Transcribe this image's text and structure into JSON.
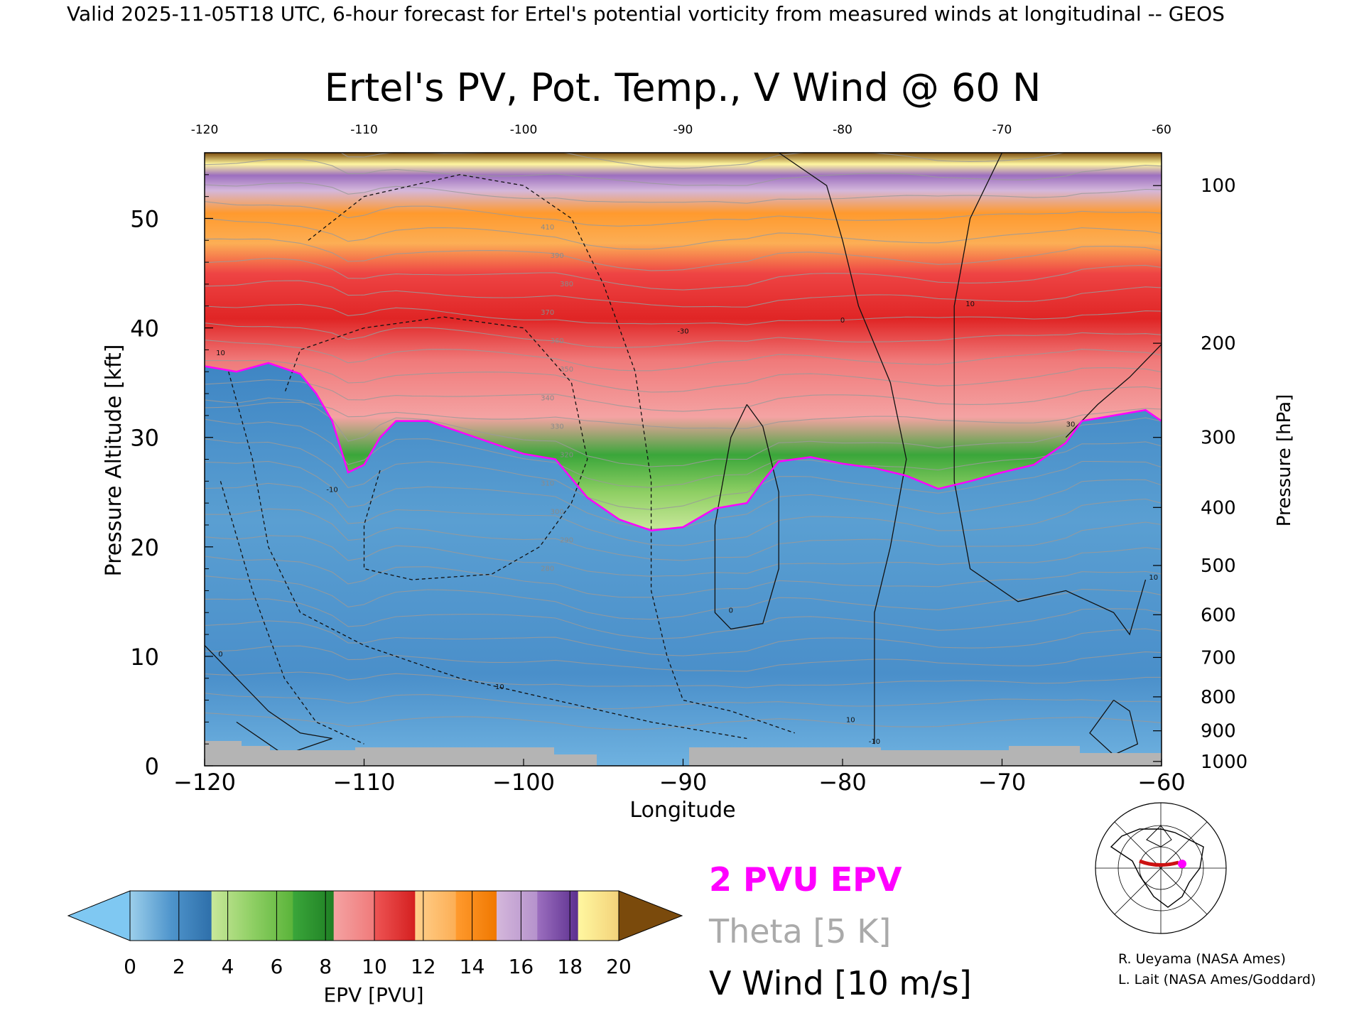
{
  "header": {
    "valid_text": "Valid 2025-11-05T18 UTC, 6-hour forecast for Ertel's potential vorticity from measured winds at longitudinal -- GEOS"
  },
  "chart_data": {
    "type": "heatmap",
    "title": "Ertel's PV, Pot. Temp., V Wind @ 60 N",
    "xlabel": "Longitude",
    "ylabel_left": "Pressure Altitude [kft]",
    "ylabel_right": "Pressure [hPa]",
    "xlim": [
      -120,
      -60
    ],
    "ylim": [
      0,
      56
    ],
    "x_ticks": [
      "-120",
      "-110",
      "-100",
      "-90",
      "-80",
      "-70",
      "-60"
    ],
    "top_ticks": [
      "-120",
      "-110",
      "-100",
      "-90",
      "-80",
      "-70",
      "-60"
    ],
    "y_ticks_left": [
      "0",
      "10",
      "20",
      "30",
      "40",
      "50"
    ],
    "y_ticks_right": [
      {
        "label": "100",
        "kft": 53.0
      },
      {
        "label": "200",
        "kft": 38.6
      },
      {
        "label": "300",
        "kft": 30.0
      },
      {
        "label": "400",
        "kft": 23.6
      },
      {
        "label": "500",
        "kft": 18.3
      },
      {
        "label": "600",
        "kft": 13.8
      },
      {
        "label": "700",
        "kft": 9.9
      },
      {
        "label": "800",
        "kft": 6.3
      },
      {
        "label": "900",
        "kft": 3.2
      },
      {
        "label": "1000",
        "kft": 0.4
      }
    ],
    "tropopause_2pvu_kft": [
      [
        -120,
        36.5
      ],
      [
        -118,
        36.0
      ],
      [
        -116,
        36.8
      ],
      [
        -114,
        35.8
      ],
      [
        -113,
        34.0
      ],
      [
        -112,
        31.5
      ],
      [
        -111,
        26.8
      ],
      [
        -110,
        27.5
      ],
      [
        -109,
        30.0
      ],
      [
        -108,
        31.5
      ],
      [
        -106,
        31.5
      ],
      [
        -104,
        30.5
      ],
      [
        -102,
        29.5
      ],
      [
        -100,
        28.5
      ],
      [
        -98,
        28.0
      ],
      [
        -96,
        24.5
      ],
      [
        -94,
        22.5
      ],
      [
        -92,
        21.5
      ],
      [
        -90,
        21.8
      ],
      [
        -88,
        23.5
      ],
      [
        -86,
        24.0
      ],
      [
        -85,
        26.0
      ],
      [
        -84,
        27.8
      ],
      [
        -82,
        28.2
      ],
      [
        -80,
        27.6
      ],
      [
        -78,
        27.2
      ],
      [
        -76,
        26.5
      ],
      [
        -74,
        25.3
      ],
      [
        -72,
        26.0
      ],
      [
        -70,
        26.8
      ],
      [
        -68,
        27.5
      ],
      [
        -66,
        29.5
      ],
      [
        -65,
        31.5
      ],
      [
        -63,
        32.0
      ],
      [
        -61,
        32.5
      ],
      [
        -60,
        31.5
      ]
    ],
    "theta_contour_labels": [
      "410",
      "390",
      "380",
      "370",
      "360",
      "350",
      "340",
      "330",
      "320",
      "310",
      "300",
      "290",
      "280"
    ],
    "theta_levels_K": [
      280,
      285,
      290,
      295,
      300,
      305,
      310,
      315,
      320,
      325,
      330,
      335,
      340,
      345,
      350,
      355,
      360,
      365,
      370,
      375,
      380,
      385,
      390,
      395,
      400,
      405,
      410,
      415,
      420
    ],
    "v_wind_contour_labels": [
      "10",
      "0",
      "-10",
      "-30",
      "10",
      "10",
      "0",
      "10",
      "-10",
      "30",
      "10",
      "0"
    ],
    "colorbar": {
      "label": "EPV [PVU]",
      "ticks": [
        "0",
        "2",
        "4",
        "6",
        "8",
        "10",
        "12",
        "14",
        "16",
        "18",
        "20"
      ],
      "under_color": "#7fc8f2",
      "over_color": "#7a4a0c",
      "band_colors": [
        [
          "#9ccfeb",
          "#4f95cc"
        ],
        [
          "#4f95cc",
          "#2e6faa"
        ],
        [
          "#c9e89a",
          "#8fcf64"
        ],
        [
          "#8fcf64",
          "#5ab43a"
        ],
        [
          "#3aa63a",
          "#1f7f24"
        ],
        [
          "#f4a3a3",
          "#f07a7a"
        ],
        [
          "#ee5555",
          "#d41f1f"
        ],
        [
          "#ffd08c",
          "#fcae55"
        ],
        [
          "#ff9a2e",
          "#f07800"
        ],
        [
          "#d4b7db",
          "#b592cc"
        ],
        [
          "#9c6fbf",
          "#5c2f8f"
        ],
        [
          "#fff7a0",
          "#f3d27a"
        ]
      ]
    }
  },
  "legend": {
    "pv_label": "2 PVU EPV",
    "pv_color": "#ff00ff",
    "theta_label": "Theta [5 K]",
    "theta_color": "#aaaaaa",
    "wind_label": "V Wind [10 m/s]",
    "wind_color": "#000000"
  },
  "inset_map": {
    "description_icon": "polar-map-icon",
    "section_color": "#cc1111",
    "marker_color": "#ff00ff"
  },
  "credits": {
    "line1": "R. Ueyama (NASA Ames)",
    "line2": "L. Lait (NASA Ames/Goddard)"
  }
}
